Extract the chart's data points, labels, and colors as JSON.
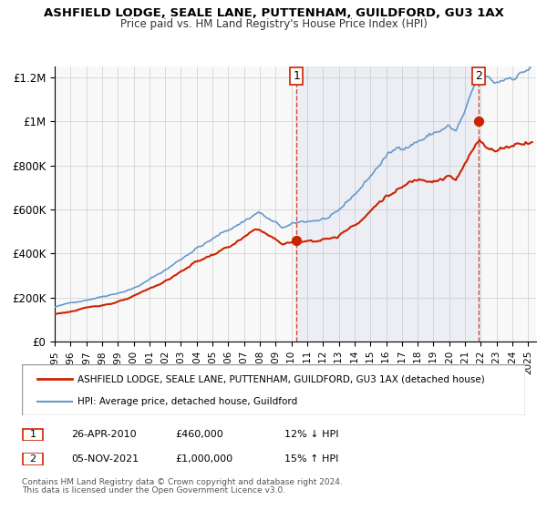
{
  "title": "ASHFIELD LODGE, SEALE LANE, PUTTENHAM, GUILDFORD, GU3 1AX",
  "subtitle": "Price paid vs. HM Land Registry's House Price Index (HPI)",
  "hpi_color": "#6699cc",
  "price_color": "#cc2200",
  "marker_color": "#cc2200",
  "bg_color": "#dce9f5",
  "plot_bg": "#f5f5f5",
  "ylim": [
    0,
    1250000
  ],
  "xlim_start": 1995.0,
  "xlim_end": 2025.5,
  "yticks": [
    0,
    200000,
    400000,
    600000,
    800000,
    1000000,
    1200000
  ],
  "ytick_labels": [
    "£0",
    "£200K",
    "£400K",
    "£600K",
    "£800K",
    "£1M",
    "£1.2M"
  ],
  "sale1_x": 2010.32,
  "sale1_y": 460000,
  "sale1_label": "1",
  "sale2_x": 2021.84,
  "sale2_y": 1000000,
  "sale2_label": "2",
  "legend_line1": "ASHFIELD LODGE, SEALE LANE, PUTTENHAM, GUILDFORD, GU3 1AX (detached house)",
  "legend_line2": "HPI: Average price, detached house, Guildford",
  "table_row1_num": "1",
  "table_row1_date": "26-APR-2010",
  "table_row1_price": "£460,000",
  "table_row1_hpi": "12% ↓ HPI",
  "table_row2_num": "2",
  "table_row2_date": "05-NOV-2021",
  "table_row2_price": "£1,000,000",
  "table_row2_hpi": "15% ↑ HPI",
  "footnote1": "Contains HM Land Registry data © Crown copyright and database right 2024.",
  "footnote2": "This data is licensed under the Open Government Licence v3.0."
}
